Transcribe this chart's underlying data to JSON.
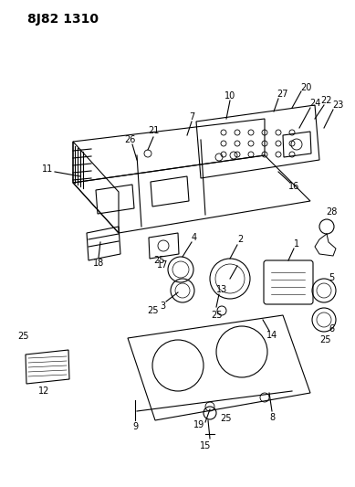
{
  "title": "8J82 1310",
  "bg_color": "#ffffff",
  "line_color": "#000000",
  "title_fontsize": 10,
  "label_fontsize": 7,
  "figsize": [
    3.89,
    5.33
  ],
  "dpi": 100
}
